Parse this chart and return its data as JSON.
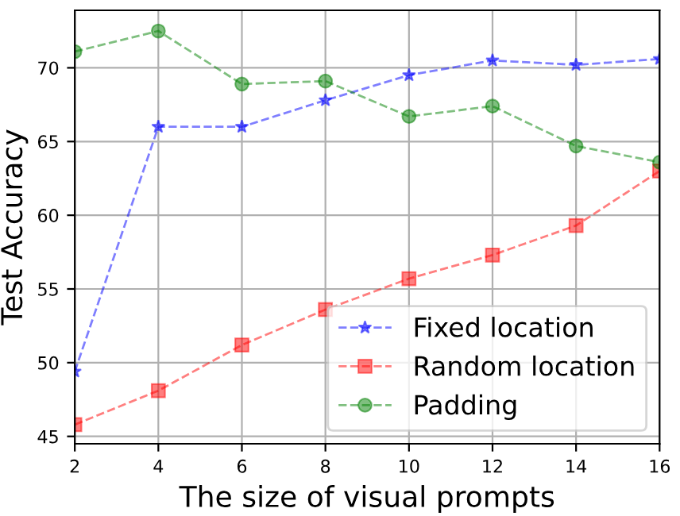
{
  "chart_data": {
    "type": "line",
    "xlabel": "The size of visual prompts",
    "ylabel": "Test Accuracy",
    "x": [
      2,
      4,
      6,
      8,
      10,
      12,
      14,
      16
    ],
    "series": [
      {
        "name": "Fixed location",
        "color": "#0000ff",
        "marker": "star",
        "values": [
          49.4,
          66.0,
          66.0,
          67.8,
          69.5,
          70.5,
          70.2,
          70.6
        ]
      },
      {
        "name": "Random location",
        "color": "#ff0000",
        "marker": "square",
        "values": [
          45.8,
          48.1,
          51.2,
          53.6,
          55.7,
          57.3,
          59.3,
          63.0
        ]
      },
      {
        "name": "Padding",
        "color": "#008000",
        "marker": "circle",
        "values": [
          71.1,
          72.5,
          68.9,
          69.1,
          66.7,
          67.4,
          64.7,
          63.6
        ]
      }
    ],
    "xlim": [
      2,
      16
    ],
    "xticks": [
      2,
      4,
      6,
      8,
      10,
      12,
      14,
      16
    ],
    "ylim": [
      44.5,
      73.9
    ],
    "yticks": [
      45,
      50,
      55,
      60,
      65,
      70
    ],
    "grid": true,
    "legend": "bottom right",
    "line_style": "dashed"
  }
}
